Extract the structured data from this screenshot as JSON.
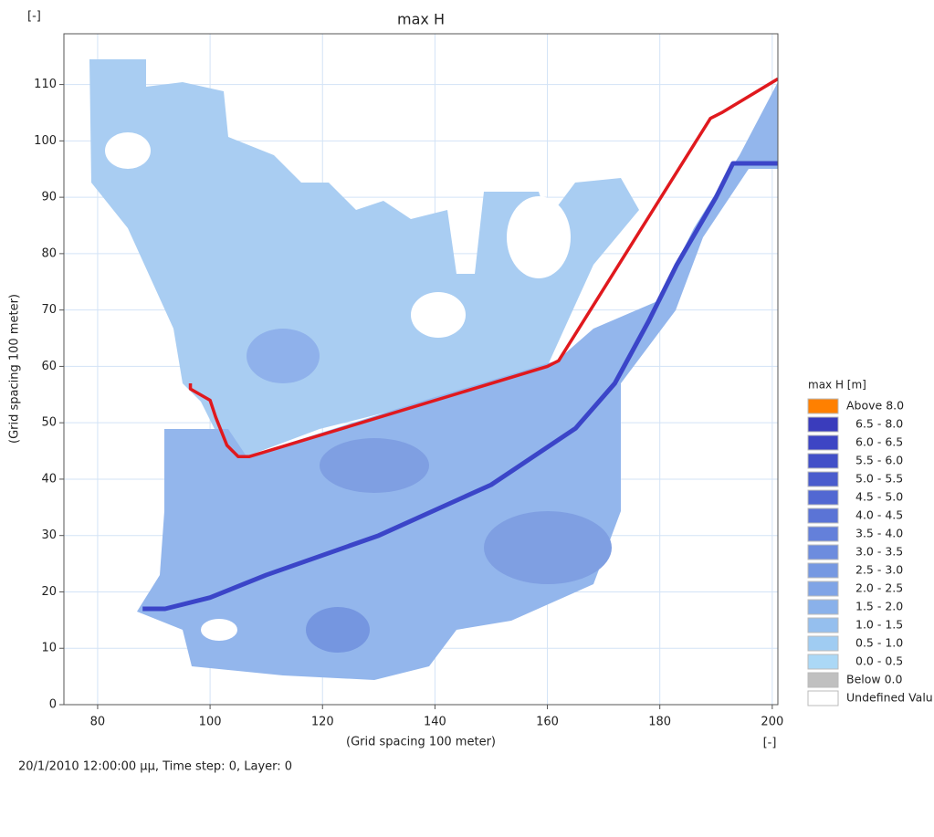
{
  "chart_data": {
    "type": "map",
    "title": "max H",
    "x_label": "(Grid spacing 100 meter)",
    "y_label": "(Grid spacing 100 meter)",
    "x_unit": "[-]",
    "y_unit": "[-]",
    "footer": "20/1/2010 12:00:00 μμ, Time step: 0, Layer: 0",
    "xlim": [
      74,
      201
    ],
    "xticks": [
      80,
      100,
      120,
      140,
      160,
      180,
      200
    ],
    "ylim": [
      0,
      119
    ],
    "yticks": [
      0,
      10,
      20,
      30,
      40,
      50,
      60,
      70,
      80,
      90,
      100,
      110
    ],
    "grid": true,
    "boundary": {
      "color": "#e0191e",
      "x": [
        96.5,
        96.5,
        100,
        101,
        103,
        105,
        107,
        160,
        162,
        189,
        191,
        201
      ],
      "y": [
        57,
        56,
        54,
        51,
        46,
        44,
        44,
        60,
        61,
        104,
        105,
        111
      ]
    },
    "channel": {
      "color": "#3b45c8",
      "x": [
        88,
        92,
        100,
        110,
        130,
        150,
        165,
        172,
        178,
        183,
        190,
        193,
        201
      ],
      "y": [
        17,
        17,
        19,
        23,
        30,
        39,
        49,
        57,
        68,
        78,
        90,
        96,
        96
      ]
    },
    "legend": {
      "title": "max H [m]",
      "items": [
        {
          "label": "Above 8.0",
          "color": "#ff8000"
        },
        {
          "label": "6.5 - 8.0",
          "color": "#3a3cbc"
        },
        {
          "label": "6.0 - 6.5",
          "color": "#3d45c4"
        },
        {
          "label": "5.5 - 6.0",
          "color": "#4250c8"
        },
        {
          "label": "5.0 - 5.5",
          "color": "#4a5ccd"
        },
        {
          "label": "4.5 - 5.0",
          "color": "#5268d2"
        },
        {
          "label": "4.0 - 4.5",
          "color": "#5b74d6"
        },
        {
          "label": "3.5 - 4.0",
          "color": "#6480da"
        },
        {
          "label": "3.0 - 3.5",
          "color": "#6d8cde"
        },
        {
          "label": "2.5 - 3.0",
          "color": "#7698e2"
        },
        {
          "label": "2.0 - 2.5",
          "color": "#80a4e6"
        },
        {
          "label": "1.5 - 2.0",
          "color": "#8ab1ea"
        },
        {
          "label": "1.0 - 1.5",
          "color": "#95bfee"
        },
        {
          "label": "0.5 - 1.0",
          "color": "#a0ccf2"
        },
        {
          "label": "0.0 - 0.5",
          "color": "#abd8f6"
        },
        {
          "label": "Below 0.0",
          "color": "#c0c0c0"
        },
        {
          "label": "Undefined Valu",
          "color": "#ffffff"
        }
      ]
    }
  }
}
